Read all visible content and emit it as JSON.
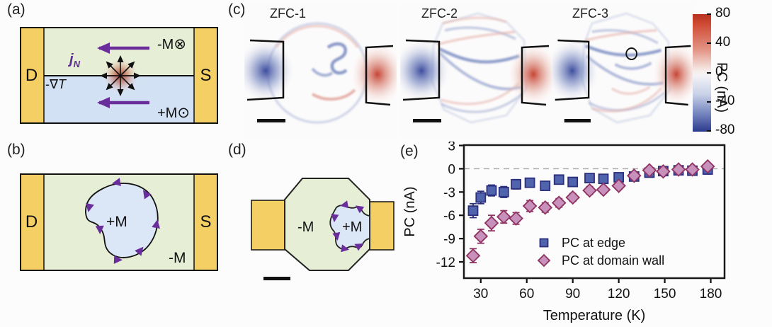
{
  "figure": {
    "panel_labels": {
      "a": "(a)",
      "b": "(b)",
      "c": "(c)",
      "d": "(d)",
      "e": "(e)"
    }
  },
  "panel_a": {
    "drain": "D",
    "source": "S",
    "top_region_m": "-M",
    "top_region_sym": "⊗",
    "bottom_region_m": "+M",
    "bottom_region_sym": "⊙",
    "spin_current_j": "j",
    "spin_current_sub": "N",
    "thermal_gradient_prefix": "-∇",
    "thermal_gradient_T": "T",
    "colors": {
      "contact": "#f4cf63",
      "region_up": "#e6eed6",
      "region_down": "#d3e1f4",
      "arrow_purple": "#6a2e9c"
    }
  },
  "panel_b": {
    "drain": "D",
    "source": "S",
    "domain_label": "+M",
    "background_label": "-M"
  },
  "panel_c": {
    "images": [
      {
        "title": "ZFC-1"
      },
      {
        "title": "ZFC-2"
      },
      {
        "title": "ZFC-3"
      }
    ]
  },
  "panel_d": {
    "background_label": "-M",
    "domain_label": "+M"
  },
  "colorbar": {
    "label": "PC (nA)",
    "ticks": [
      80,
      40,
      0,
      -40,
      -80
    ],
    "max_color": "#c43a28",
    "min_color": "#2f3d8f"
  },
  "chart_data": {
    "type": "scatter",
    "xlabel": "Temperature (K)",
    "ylabel": "PC (nA)",
    "xticks": [
      30,
      60,
      90,
      120,
      150,
      180
    ],
    "yticks": [
      3,
      0,
      -3,
      -6,
      -9,
      -12
    ],
    "xlim": [
      19,
      189
    ],
    "ylim": [
      -14.1,
      3.05
    ],
    "zero_line": 0,
    "grid": false,
    "legend_position": "inside-bottom-center",
    "x": [
      25,
      30,
      37,
      45,
      53,
      62,
      72,
      81,
      90,
      101,
      110,
      120,
      130,
      140,
      149,
      159,
      168,
      178
    ],
    "series": [
      {
        "name": "PC at edge",
        "marker": "square",
        "color": "#5064ae",
        "edge_color": "#2b2f7e",
        "values": [
          -5.4,
          -3.7,
          -2.8,
          -3.0,
          -2.0,
          -1.8,
          -2.2,
          -1.4,
          -1.7,
          -1.2,
          -1.3,
          -1.1,
          -1.0,
          -0.5,
          -0.3,
          -0.2,
          -0.25,
          -0.1
        ],
        "errors": [
          0.9,
          0.8,
          0.7,
          0.7,
          0.6,
          0.5,
          0.5,
          0.45,
          0.4,
          0.4,
          0.4,
          0.35,
          0.3,
          0.3,
          0.25,
          0.2,
          0.2,
          0.2
        ]
      },
      {
        "name": "PC at domain wall",
        "marker": "diamond",
        "color": "#c791bb",
        "edge_color": "#8e3262",
        "values": [
          -11.2,
          -8.7,
          -7.0,
          -6.2,
          -6.4,
          -4.8,
          -5.0,
          -4.4,
          -3.7,
          -2.8,
          -2.7,
          -2.2,
          -0.9,
          -0.2,
          -0.35,
          -0.1,
          -0.1,
          0.3
        ],
        "errors": [
          0.9,
          0.9,
          1.0,
          0.8,
          0.75,
          0.7,
          0.6,
          0.55,
          0.5,
          0.5,
          0.45,
          0.4,
          0.4,
          0.35,
          0.3,
          0.3,
          0.3,
          0.25
        ]
      }
    ]
  }
}
